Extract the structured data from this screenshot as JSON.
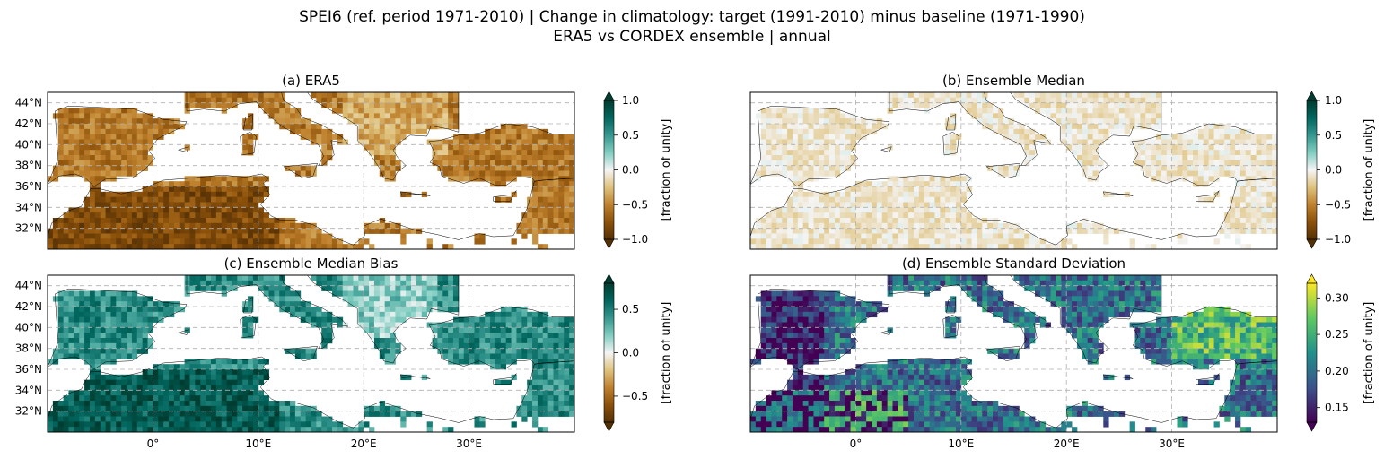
{
  "title_line1": "SPEI6 (ref. period 1971-2010) | Change in climatology: target (1991-2010) minus baseline (1971-1990)",
  "title_line2": "ERA5 vs CORDEX ensemble | annual",
  "chart_data": [
    {
      "type": "heatmap",
      "title": "(a) ERA5",
      "colormap": "BrBG",
      "colorbar": {
        "min": -1.0,
        "max": 1.0,
        "ticks": [
          "1.0",
          "0.5",
          "0.0",
          "−0.5",
          "−1.0"
        ],
        "tick_values": [
          1.0,
          0.5,
          0.0,
          -0.5,
          -1.0
        ],
        "label": "[fraction of unity]",
        "extend": "both"
      },
      "lat_ticks": [
        "44°N",
        "42°N",
        "40°N",
        "38°N",
        "36°N",
        "34°N",
        "32°N"
      ],
      "lat_values": [
        44,
        42,
        40,
        38,
        36,
        34,
        32
      ],
      "lon_ticks": [],
      "xlim": [
        -10,
        40
      ],
      "ylim": [
        30,
        45
      ]
    },
    {
      "type": "heatmap",
      "title": "(b) Ensemble Median",
      "colormap": "BrBG",
      "colorbar": {
        "min": -1.0,
        "max": 1.0,
        "ticks": [
          "1.0",
          "0.5",
          "0.0",
          "−0.5",
          "−1.0"
        ],
        "tick_values": [
          1.0,
          0.5,
          0.0,
          -0.5,
          -1.0
        ],
        "label": "[fraction of unity]",
        "extend": "both"
      },
      "lat_ticks": [],
      "lat_values": [],
      "lon_ticks": [],
      "xlim": [
        -10,
        40
      ],
      "ylim": [
        30,
        45
      ]
    },
    {
      "type": "heatmap",
      "title": "(c) Ensemble Median Bias",
      "colormap": "BrBG",
      "colorbar": {
        "min": -0.8,
        "max": 0.8,
        "ticks": [
          "0.5",
          "0.0",
          "−0.5"
        ],
        "tick_values": [
          0.5,
          0.0,
          -0.5
        ],
        "label": "[fraction of unity]",
        "extend": "both"
      },
      "lat_ticks": [
        "44°N",
        "42°N",
        "40°N",
        "38°N",
        "36°N",
        "34°N",
        "32°N"
      ],
      "lat_values": [
        44,
        42,
        40,
        38,
        36,
        34,
        32
      ],
      "lon_ticks": [
        "0°",
        "10°E",
        "20°E",
        "30°E"
      ],
      "lon_values": [
        0,
        10,
        20,
        30
      ],
      "xlim": [
        -10,
        40
      ],
      "ylim": [
        30,
        45
      ]
    },
    {
      "type": "heatmap",
      "title": "(d) Ensemble Standard Deviation",
      "colormap": "viridis",
      "colorbar": {
        "min": 0.13,
        "max": 0.32,
        "ticks": [
          "0.30",
          "0.25",
          "0.20",
          "0.15"
        ],
        "tick_values": [
          0.3,
          0.25,
          0.2,
          0.15
        ],
        "label": "[fraction of unity]",
        "extend": "both"
      },
      "lat_ticks": [],
      "lat_values": [],
      "lon_ticks": [
        "0°",
        "10°E",
        "20°E",
        "30°E"
      ],
      "lon_values": [
        0,
        10,
        20,
        30
      ],
      "xlim": [
        -10,
        40
      ],
      "ylim": [
        30,
        45
      ]
    }
  ]
}
